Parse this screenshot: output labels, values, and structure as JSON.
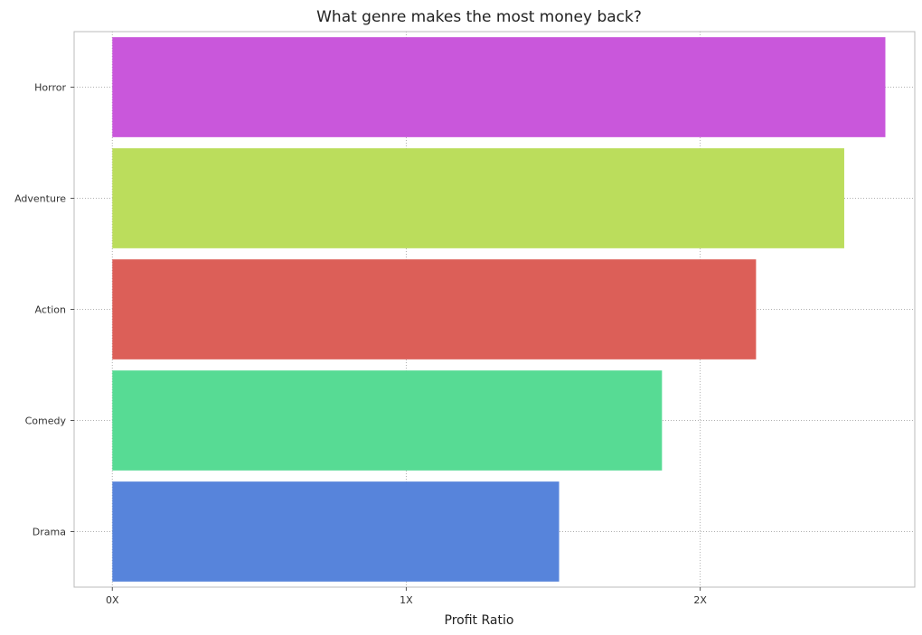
{
  "chart_data": {
    "type": "bar",
    "orientation": "horizontal",
    "title": "What genre makes the most money back?",
    "xlabel": "Profit Ratio",
    "ylabel": "",
    "categories": [
      "Horror",
      "Adventure",
      "Action",
      "Comedy",
      "Drama"
    ],
    "values": [
      2.63,
      2.49,
      2.19,
      1.87,
      1.52
    ],
    "colors": [
      "#c957db",
      "#bbdd5c",
      "#dc5f58",
      "#57db94",
      "#5784db"
    ],
    "xlim": [
      -0.13,
      2.73
    ],
    "xticks": [
      0,
      1,
      2
    ],
    "xtick_labels": [
      "0X",
      "1X",
      "2X"
    ],
    "grid": true,
    "grid_style": "dotted",
    "legend": "none"
  }
}
